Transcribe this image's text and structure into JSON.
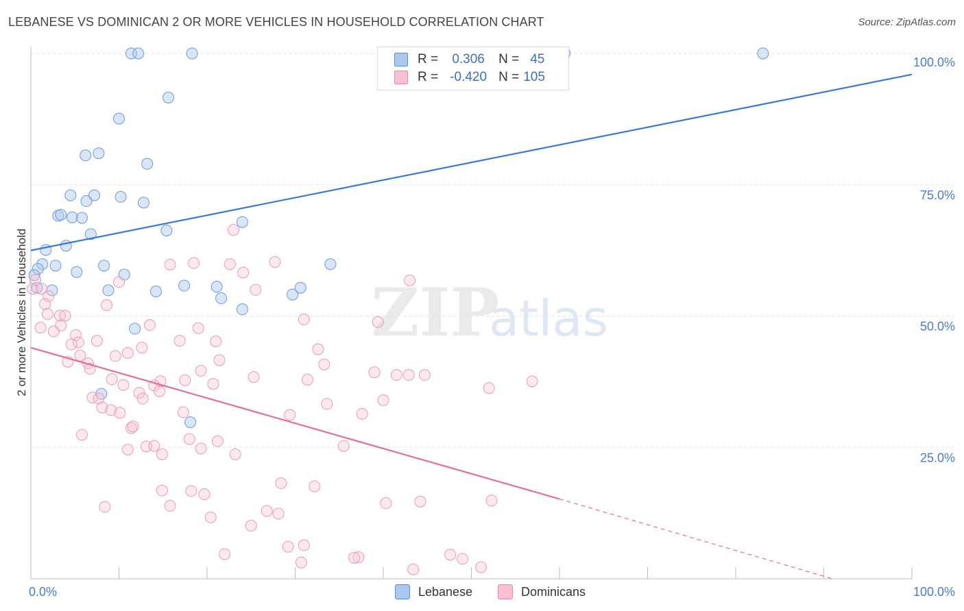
{
  "title": "LEBANESE VS DOMINICAN 2 OR MORE VEHICLES IN HOUSEHOLD CORRELATION CHART",
  "source": "Source: ZipAtlas.com",
  "watermark": {
    "zip": "ZIP",
    "atlas": "atlas"
  },
  "legend": {
    "r_label": "R =",
    "n_label": "N =",
    "rows": [
      {
        "r": "0.306",
        "n": "45",
        "fill": "#aac8ee",
        "stroke": "#5a8fd6"
      },
      {
        "r": "-0.420",
        "n": "105",
        "fill": "#f7bfd0",
        "stroke": "#e98aa8"
      }
    ]
  },
  "bottom_legend": [
    "Lebanese",
    "Dominicans"
  ],
  "chart_data": {
    "type": "scatter",
    "xlabel": "",
    "ylabel": "2 or more Vehicles in Household",
    "xlim": [
      0,
      100
    ],
    "ylim": [
      0,
      100
    ],
    "x_tick_labels": [
      "0.0%",
      "100.0%"
    ],
    "y_tick_labels": [
      "25.0%",
      "50.0%",
      "75.0%",
      "100.0%"
    ],
    "y_ticks": [
      25,
      50,
      75,
      100
    ],
    "grid": "dashed horizontal",
    "colors": {
      "lebanese": "#3b78d0",
      "dominicans": "#e0709a",
      "axis_text": "#4a7bd1"
    },
    "series": [
      {
        "name": "Lebanese",
        "trend": {
          "x": [
            0,
            100
          ],
          "y": [
            62.5,
            96
          ]
        },
        "points": [
          [
            11.4,
            100
          ],
          [
            12.2,
            100
          ],
          [
            18.3,
            100
          ],
          [
            60.6,
            100
          ],
          [
            83.1,
            100
          ],
          [
            15.6,
            91.6
          ],
          [
            10.0,
            87.6
          ],
          [
            6.2,
            80.6
          ],
          [
            7.7,
            81.0
          ],
          [
            13.2,
            79.0
          ],
          [
            4.5,
            73.0
          ],
          [
            7.2,
            73.0
          ],
          [
            10.2,
            72.7
          ],
          [
            6.3,
            71.9
          ],
          [
            12.8,
            71.6
          ],
          [
            3.1,
            69.1
          ],
          [
            3.4,
            69.3
          ],
          [
            4.7,
            68.8
          ],
          [
            5.8,
            68.7
          ],
          [
            24.0,
            67.9
          ],
          [
            6.8,
            65.6
          ],
          [
            15.4,
            66.3
          ],
          [
            4.0,
            63.4
          ],
          [
            1.7,
            62.6
          ],
          [
            34.0,
            59.9
          ],
          [
            1.3,
            59.9
          ],
          [
            2.8,
            59.6
          ],
          [
            8.3,
            59.6
          ],
          [
            0.8,
            59.0
          ],
          [
            5.2,
            58.4
          ],
          [
            10.6,
            57.9
          ],
          [
            0.4,
            57.8
          ],
          [
            0.7,
            55.4
          ],
          [
            17.4,
            55.8
          ],
          [
            21.1,
            55.6
          ],
          [
            30.6,
            55.4
          ],
          [
            2.4,
            54.9
          ],
          [
            8.8,
            54.9
          ],
          [
            14.2,
            54.7
          ],
          [
            29.7,
            54.1
          ],
          [
            21.6,
            53.4
          ],
          [
            24.0,
            51.3
          ],
          [
            11.8,
            47.6
          ],
          [
            8.0,
            35.2
          ],
          [
            18.1,
            29.8
          ]
        ]
      },
      {
        "name": "Dominicans",
        "trend": {
          "x": [
            0,
            60
          ],
          "y": [
            44,
            15.2
          ]
        },
        "trend_dashed": {
          "x": [
            60,
            91
          ],
          "y": [
            15.2,
            0
          ]
        },
        "points": [
          [
            23.0,
            66.4
          ],
          [
            27.7,
            60.3
          ],
          [
            18.5,
            60.1
          ],
          [
            15.8,
            59.8
          ],
          [
            22.6,
            59.9
          ],
          [
            24.1,
            58.3
          ],
          [
            43.0,
            56.8
          ],
          [
            0.5,
            56.9
          ],
          [
            0.2,
            55.2
          ],
          [
            1.2,
            55.2
          ],
          [
            25.5,
            55.0
          ],
          [
            2.0,
            53.8
          ],
          [
            1.6,
            52.3
          ],
          [
            8.6,
            52.1
          ],
          [
            1.9,
            50.4
          ],
          [
            3.3,
            50.1
          ],
          [
            3.9,
            50.1
          ],
          [
            31.0,
            49.4
          ],
          [
            39.4,
            48.9
          ],
          [
            13.5,
            48.3
          ],
          [
            3.4,
            48.2
          ],
          [
            1.1,
            47.8
          ],
          [
            19.0,
            47.7
          ],
          [
            2.6,
            47.1
          ],
          [
            5.1,
            46.4
          ],
          [
            16.9,
            45.3
          ],
          [
            5.4,
            45.0
          ],
          [
            21.0,
            45.2
          ],
          [
            7.5,
            45.3
          ],
          [
            4.6,
            44.6
          ],
          [
            12.6,
            44.0
          ],
          [
            32.6,
            43.7
          ],
          [
            11.0,
            43.0
          ],
          [
            9.6,
            42.4
          ],
          [
            5.6,
            42.5
          ],
          [
            21.4,
            41.6
          ],
          [
            4.2,
            41.3
          ],
          [
            6.5,
            41.0
          ],
          [
            33.3,
            40.8
          ],
          [
            6.7,
            40.0
          ],
          [
            19.3,
            39.6
          ],
          [
            39.0,
            39.3
          ],
          [
            41.5,
            38.8
          ],
          [
            42.9,
            38.8
          ],
          [
            44.7,
            38.8
          ],
          [
            25.3,
            38.4
          ],
          [
            9.2,
            38.0
          ],
          [
            31.4,
            37.9
          ],
          [
            14.7,
            37.6
          ],
          [
            17.5,
            37.8
          ],
          [
            20.7,
            37.1
          ],
          [
            10.5,
            36.9
          ],
          [
            14.0,
            36.8
          ],
          [
            56.9,
            37.6
          ],
          [
            52.0,
            36.3
          ],
          [
            14.6,
            35.7
          ],
          [
            12.3,
            35.4
          ],
          [
            7.0,
            34.5
          ],
          [
            7.7,
            34.3
          ],
          [
            12.7,
            34.3
          ],
          [
            40.0,
            34.0
          ],
          [
            33.6,
            33.3
          ],
          [
            8.1,
            32.6
          ],
          [
            9.1,
            32.1
          ],
          [
            10.1,
            31.6
          ],
          [
            17.3,
            31.7
          ],
          [
            37.6,
            31.4
          ],
          [
            29.4,
            31.2
          ],
          [
            11.4,
            28.7
          ],
          [
            11.6,
            29.0
          ],
          [
            5.8,
            27.4
          ],
          [
            18.0,
            26.6
          ],
          [
            21.2,
            26.2
          ],
          [
            13.1,
            25.2
          ],
          [
            14.0,
            25.3
          ],
          [
            35.5,
            25.3
          ],
          [
            11.0,
            24.6
          ],
          [
            19.3,
            24.8
          ],
          [
            14.9,
            23.7
          ],
          [
            23.2,
            23.7
          ],
          [
            28.4,
            18.2
          ],
          [
            32.2,
            17.6
          ],
          [
            14.9,
            16.8
          ],
          [
            18.2,
            16.7
          ],
          [
            19.7,
            16.1
          ],
          [
            44.2,
            14.7
          ],
          [
            52.3,
            14.9
          ],
          [
            40.3,
            14.4
          ],
          [
            8.4,
            13.7
          ],
          [
            15.8,
            13.9
          ],
          [
            28.1,
            12.4
          ],
          [
            26.8,
            12.9
          ],
          [
            20.4,
            11.7
          ],
          [
            25.0,
            10.1
          ],
          [
            31.0,
            6.4
          ],
          [
            29.2,
            6.1
          ],
          [
            22.0,
            4.7
          ],
          [
            47.6,
            4.6
          ],
          [
            37.2,
            4.1
          ],
          [
            36.7,
            4.0
          ],
          [
            49.0,
            3.8
          ],
          [
            30.7,
            3.1
          ],
          [
            51.1,
            2.2
          ],
          [
            43.4,
            1.8
          ],
          [
            10.0,
            56.5
          ]
        ]
      }
    ]
  }
}
